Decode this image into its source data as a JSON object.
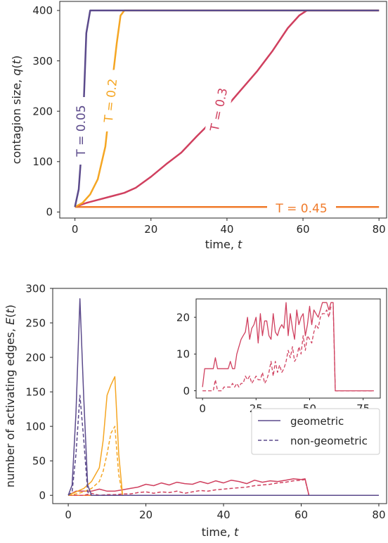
{
  "chart_data": [
    {
      "type": "line",
      "xlabel": "time, $t$",
      "ylabel": "contagion size, $q(t)$",
      "xlim": [
        -4,
        82
      ],
      "ylim": [
        -12,
        418
      ],
      "xticks": [
        0,
        20,
        40,
        60,
        80
      ],
      "yticks": [
        0,
        100,
        200,
        300,
        400
      ],
      "grid": false,
      "series": [
        {
          "name": "T = 0.05",
          "color": "#5b4a8b",
          "x": [
            0,
            1,
            2,
            3,
            4,
            80
          ],
          "y": [
            10,
            45,
            150,
            355,
            400,
            400
          ]
        },
        {
          "name": "T = 0.2",
          "color": "#f5a623",
          "x": [
            0,
            2,
            4,
            6,
            8,
            9,
            10,
            11,
            12,
            13,
            80
          ],
          "y": [
            10,
            18,
            35,
            65,
            130,
            200,
            270,
            335,
            390,
            400,
            400
          ]
        },
        {
          "name": "T = 0.3",
          "color": "#d0405f",
          "x": [
            0,
            3,
            6,
            10,
            13,
            16,
            20,
            24,
            28,
            32,
            36,
            40,
            44,
            48,
            52,
            56,
            59,
            61,
            80
          ],
          "y": [
            10,
            18,
            24,
            32,
            38,
            48,
            70,
            95,
            118,
            150,
            180,
            210,
            245,
            280,
            320,
            365,
            390,
            400,
            400
          ]
        },
        {
          "name": "T = 0.45",
          "color": "#f07b2b",
          "x": [
            0,
            80
          ],
          "y": [
            10,
            10
          ]
        }
      ],
      "line_labels": [
        {
          "text": "T = 0.05",
          "series": "T = 0.05"
        },
        {
          "text": "T = 0.2",
          "series": "T = 0.2"
        },
        {
          "text": "T = 0.3",
          "series": "T = 0.3"
        },
        {
          "text": "T = 0.45",
          "series": "T = 0.45"
        }
      ]
    },
    {
      "type": "line",
      "xlabel": "time, $t$",
      "ylabel": "number of activating edges, $E(t)$",
      "xlim": [
        -4,
        82
      ],
      "ylim": [
        -12,
        300
      ],
      "xticks": [
        0,
        20,
        40,
        60,
        80
      ],
      "yticks": [
        0,
        50,
        100,
        150,
        200,
        250,
        300
      ],
      "grid": false,
      "legend": {
        "position": "right",
        "entries": [
          {
            "label": "geometric",
            "style": "solid",
            "color": "#5b4a8b"
          },
          {
            "label": "non-geometric",
            "style": "dashed",
            "color": "#5b4a8b"
          }
        ]
      },
      "series": [
        {
          "name": "geometric",
          "style": "solid",
          "color": "#5b4a8b",
          "x": [
            0,
            1,
            2,
            3,
            4,
            5,
            6,
            80
          ],
          "y": [
            0,
            15,
            120,
            285,
            140,
            15,
            0,
            0
          ]
        },
        {
          "name": "non-geometric",
          "style": "dashed",
          "color": "#5b4a8b",
          "x": [
            0,
            1,
            2,
            3,
            4,
            5,
            6,
            80
          ],
          "y": [
            0,
            5,
            60,
            145,
            80,
            5,
            0,
            0
          ]
        },
        {
          "name": "geometric",
          "style": "solid",
          "color": "#f5a623",
          "x": [
            0,
            2,
            4,
            6,
            8,
            9,
            10,
            11,
            12,
            13,
            14,
            80
          ],
          "y": [
            0,
            5,
            10,
            20,
            40,
            80,
            145,
            160,
            172,
            60,
            0,
            0
          ]
        },
        {
          "name": "non-geometric",
          "style": "dashed",
          "color": "#f5a623",
          "x": [
            0,
            2,
            4,
            6,
            8,
            9,
            10,
            11,
            12,
            13,
            14,
            80
          ],
          "y": [
            0,
            2,
            5,
            10,
            20,
            35,
            60,
            90,
            100,
            30,
            0,
            0
          ]
        },
        {
          "name": "geometric",
          "style": "solid",
          "color": "#d0405f",
          "x": [
            0,
            2,
            4,
            6,
            8,
            10,
            12,
            14,
            16,
            18,
            20,
            22,
            24,
            26,
            28,
            30,
            32,
            34,
            36,
            38,
            40,
            42,
            44,
            46,
            48,
            50,
            52,
            54,
            56,
            58,
            60,
            61,
            62,
            80
          ],
          "y": [
            0,
            6,
            6,
            6,
            9,
            6,
            6,
            8,
            10,
            12,
            16,
            14,
            18,
            15,
            19,
            17,
            16,
            20,
            17,
            21,
            18,
            22,
            20,
            17,
            22,
            19,
            21,
            20,
            22,
            24,
            23,
            24,
            0,
            0
          ]
        },
        {
          "name": "non-geometric",
          "style": "dashed",
          "color": "#d0405f",
          "x": [
            0,
            2,
            4,
            6,
            8,
            10,
            12,
            14,
            16,
            18,
            20,
            22,
            24,
            26,
            28,
            30,
            32,
            34,
            36,
            38,
            40,
            42,
            44,
            46,
            48,
            50,
            52,
            54,
            56,
            58,
            60,
            61,
            62,
            80
          ],
          "y": [
            0,
            0,
            0,
            3,
            0,
            1,
            1,
            2,
            2,
            4,
            5,
            3,
            5,
            4,
            6,
            3,
            5,
            7,
            6,
            8,
            9,
            10,
            11,
            12,
            14,
            15,
            16,
            18,
            19,
            21,
            22,
            23,
            0,
            0
          ]
        },
        {
          "name": "geometric",
          "style": "solid",
          "color": "#f07b2b",
          "x": [
            0,
            80
          ],
          "y": [
            0,
            0
          ]
        }
      ],
      "inset": {
        "xlim": [
          -3,
          83
        ],
        "ylim": [
          -2,
          25
        ],
        "xticks": [
          0,
          25,
          50,
          75
        ],
        "yticks": [
          0,
          10,
          20
        ],
        "series": [
          {
            "name": "geometric",
            "style": "solid",
            "color": "#d0405f",
            "x": [
              0,
              1,
              2,
              3,
              4,
              5,
              6,
              7,
              8,
              9,
              10,
              11,
              12,
              13,
              14,
              15,
              16,
              17,
              18,
              19,
              20,
              21,
              22,
              23,
              24,
              25,
              26,
              27,
              28,
              29,
              30,
              31,
              32,
              33,
              34,
              35,
              36,
              37,
              38,
              39,
              40,
              41,
              42,
              43,
              44,
              45,
              46,
              47,
              48,
              49,
              50,
              51,
              52,
              53,
              54,
              55,
              56,
              57,
              58,
              59,
              60,
              61,
              62,
              65,
              70,
              75,
              80
            ],
            "y": [
              1,
              6,
              6,
              6,
              6,
              6,
              9,
              6,
              6,
              6,
              6,
              6,
              6,
              8,
              6,
              6,
              10,
              12,
              14,
              15,
              16,
              20,
              14,
              17,
              18,
              20,
              13,
              21,
              15,
              19,
              19,
              15,
              14,
              21,
              16,
              15,
              17,
              18,
              17,
              24,
              15,
              21,
              17,
              14,
              22,
              18,
              20,
              21,
              15,
              18,
              23,
              18,
              22,
              21,
              20,
              22,
              24,
              24,
              24,
              22,
              24,
              24,
              0,
              0,
              0,
              0,
              0
            ]
          },
          {
            "name": "non-geometric",
            "style": "dashed",
            "color": "#d0405f",
            "x": [
              0,
              1,
              2,
              3,
              4,
              5,
              6,
              7,
              8,
              9,
              10,
              11,
              12,
              13,
              14,
              15,
              16,
              17,
              18,
              19,
              20,
              21,
              22,
              23,
              24,
              25,
              26,
              27,
              28,
              29,
              30,
              31,
              32,
              33,
              34,
              35,
              36,
              37,
              38,
              39,
              40,
              41,
              42,
              43,
              44,
              45,
              46,
              47,
              48,
              49,
              50,
              51,
              52,
              53,
              54,
              55,
              56,
              57,
              58,
              59,
              60,
              61,
              62,
              65,
              70,
              75,
              80
            ],
            "y": [
              0,
              0,
              0,
              0,
              0,
              0,
              3,
              0,
              0,
              0,
              1,
              1,
              1,
              1,
              2,
              1,
              2,
              1,
              2,
              2,
              4,
              3,
              4,
              2,
              3,
              4,
              3,
              3,
              5,
              2,
              3,
              5,
              8,
              4,
              8,
              5,
              7,
              5,
              6,
              8,
              11,
              9,
              12,
              8,
              9,
              12,
              10,
              15,
              11,
              15,
              14,
              13,
              16,
              18,
              17,
              20,
              21,
              21,
              22,
              20,
              23,
              23,
              0,
              0,
              0,
              0,
              0
            ]
          }
        ]
      }
    }
  ]
}
